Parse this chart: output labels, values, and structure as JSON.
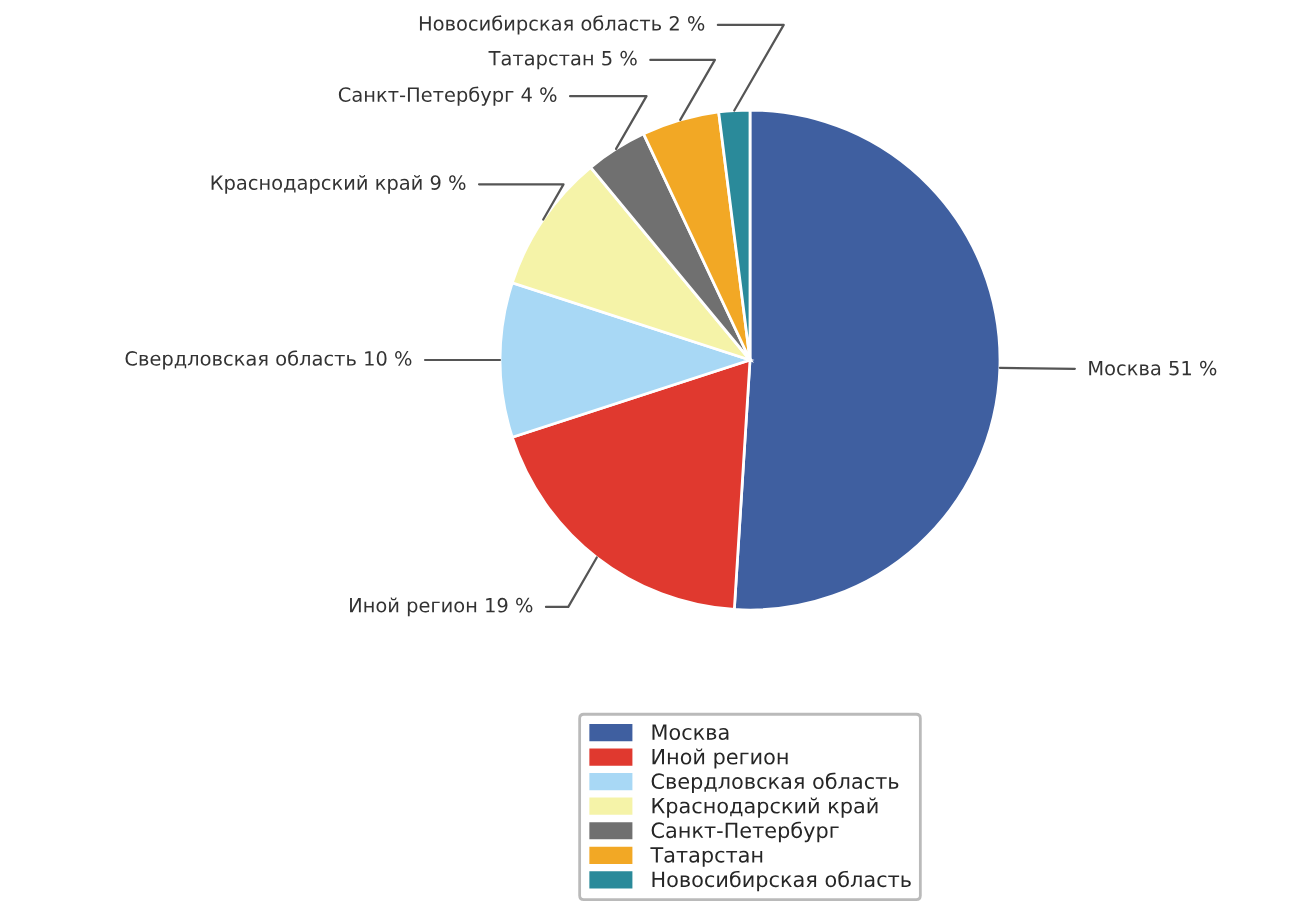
{
  "chart_data": {
    "type": "pie",
    "categories": [
      "Москва",
      "Иной регион",
      "Свердловская область",
      "Краснодарский край",
      "Санкт-Петербург",
      "Татарстан",
      "Новосибирская область"
    ],
    "values": [
      51,
      19,
      10,
      9,
      4,
      5,
      2
    ],
    "value_labels": [
      "51 %",
      "19 %",
      "10 %",
      "9 %",
      "4 %",
      "5 %",
      "2 %"
    ],
    "colors": [
      "#3f5fa0",
      "#e0392f",
      "#a8d8f5",
      "#f5f3a8",
      "#707070",
      "#f2a825",
      "#2a8a9a"
    ],
    "legend": "bottom"
  }
}
